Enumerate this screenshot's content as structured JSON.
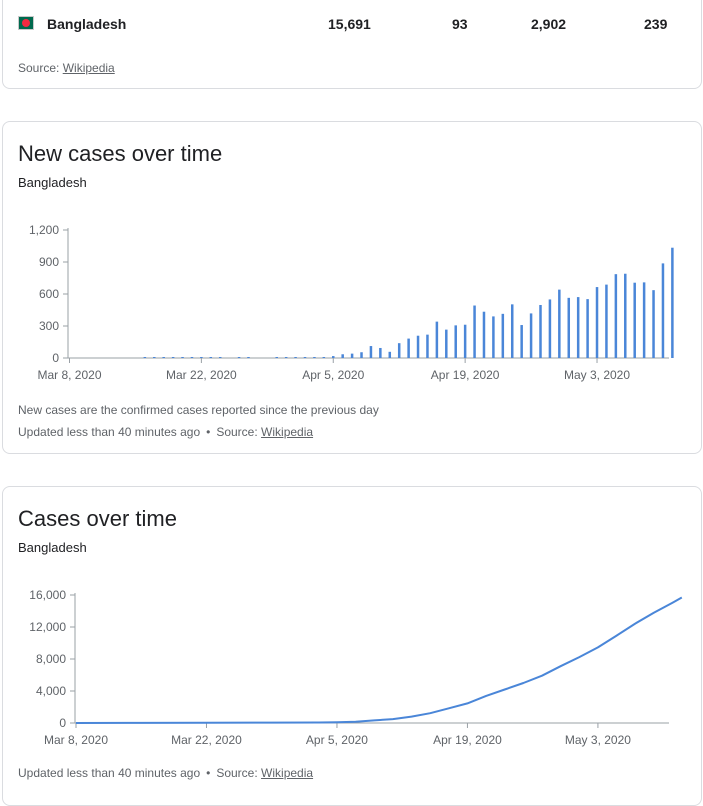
{
  "table_row": {
    "country": "Bangladesh",
    "cases": "15,691",
    "col2": "93",
    "col3": "2,902",
    "col4": "239",
    "flag_colors": {
      "field": "#006a4e",
      "disc": "#f42a41"
    }
  },
  "top_source": {
    "prefix": "Source:",
    "link": "Wikipedia"
  },
  "new_cases": {
    "title": "New cases over time",
    "subtitle": "Bangladesh",
    "note": "New cases are the confirmed cases reported since the previous day",
    "updated": "Updated less than 40 minutes ago",
    "separator": "•",
    "source_prefix": "Source:",
    "source_link": "Wikipedia"
  },
  "cumulative": {
    "title": "Cases over time",
    "subtitle": "Bangladesh",
    "updated": "Updated less than 40 minutes ago",
    "separator": "•",
    "source_prefix": "Source:",
    "source_link": "Wikipedia"
  },
  "chart_data": [
    {
      "type": "bar",
      "x_ticks": [
        "Mar 8, 2020",
        "Mar 22, 2020",
        "Apr 5, 2020",
        "Apr 19, 2020",
        "May 3, 2020"
      ],
      "y_ticks": [
        "0",
        "300",
        "600",
        "900",
        "1,200"
      ],
      "ylim": [
        0,
        1200
      ],
      "dates": [
        "Mar 8",
        "Mar 9",
        "Mar 10",
        "Mar 11",
        "Mar 12",
        "Mar 13",
        "Mar 14",
        "Mar 15",
        "Mar 16",
        "Mar 17",
        "Mar 18",
        "Mar 19",
        "Mar 20",
        "Mar 21",
        "Mar 22",
        "Mar 23",
        "Mar 24",
        "Mar 25",
        "Mar 26",
        "Mar 27",
        "Mar 28",
        "Mar 29",
        "Mar 30",
        "Mar 31",
        "Apr 1",
        "Apr 2",
        "Apr 3",
        "Apr 4",
        "Apr 5",
        "Apr 6",
        "Apr 7",
        "Apr 8",
        "Apr 9",
        "Apr 10",
        "Apr 11",
        "Apr 12",
        "Apr 13",
        "Apr 14",
        "Apr 15",
        "Apr 16",
        "Apr 17",
        "Apr 18",
        "Apr 19",
        "Apr 20",
        "Apr 21",
        "Apr 22",
        "Apr 23",
        "Apr 24",
        "Apr 25",
        "Apr 26",
        "Apr 27",
        "Apr 28",
        "Apr 29",
        "Apr 30",
        "May 1",
        "May 2",
        "May 3",
        "May 4",
        "May 5",
        "May 6",
        "May 7",
        "May 8",
        "May 9",
        "May 10",
        "May 11",
        "May 12"
      ],
      "values": [
        0,
        0,
        0,
        0,
        0,
        0,
        0,
        0,
        3,
        2,
        4,
        3,
        3,
        3,
        3,
        6,
        6,
        0,
        5,
        4,
        0,
        0,
        1,
        2,
        2,
        5,
        3,
        9,
        18,
        35,
        41,
        54,
        112,
        94,
        58,
        139,
        182,
        209,
        219,
        341,
        266,
        306,
        312,
        492,
        434,
        390,
        414,
        503,
        309,
        418,
        497,
        549,
        641,
        564,
        571,
        552,
        665,
        688,
        786,
        790,
        706,
        709,
        636,
        887,
        1034,
        0
      ],
      "show_bar": [
        false,
        false,
        false,
        false,
        false,
        false,
        false,
        false,
        true,
        true,
        true,
        true,
        true,
        true,
        true,
        true,
        true,
        false,
        true,
        true,
        false,
        false,
        true,
        true,
        true,
        true,
        true,
        true,
        true,
        true,
        true,
        true,
        true,
        true,
        true,
        true,
        true,
        true,
        true,
        true,
        true,
        true,
        true,
        true,
        true,
        true,
        true,
        true,
        true,
        true,
        true,
        true,
        true,
        true,
        true,
        true,
        true,
        true,
        true,
        true,
        true,
        true,
        true,
        true,
        true,
        false
      ]
    },
    {
      "type": "line",
      "x_ticks": [
        "Mar 8, 2020",
        "Mar 22, 2020",
        "Apr 5, 2020",
        "Apr 19, 2020",
        "May 3, 2020"
      ],
      "y_ticks": [
        "0",
        "4,000",
        "8,000",
        "12,000",
        "16,000"
      ],
      "ylim": [
        0,
        16000
      ],
      "dates": [
        "Mar 8",
        "Mar 15",
        "Mar 22",
        "Mar 29",
        "Apr 3",
        "Apr 5",
        "Apr 7",
        "Apr 9",
        "Apr 11",
        "Apr 13",
        "Apr 15",
        "Apr 17",
        "Apr 19",
        "Apr 21",
        "Apr 23",
        "Apr 25",
        "Apr 27",
        "Apr 29",
        "May 1",
        "May 3",
        "May 5",
        "May 7",
        "May 9",
        "May 11",
        "May 12"
      ],
      "values": [
        3,
        8,
        27,
        48,
        61,
        88,
        164,
        330,
        482,
        803,
        1231,
        1838,
        2456,
        3382,
        4186,
        4998,
        5913,
        7103,
        8238,
        9455,
        10929,
        12425,
        13770,
        15042,
        15691
      ]
    }
  ]
}
